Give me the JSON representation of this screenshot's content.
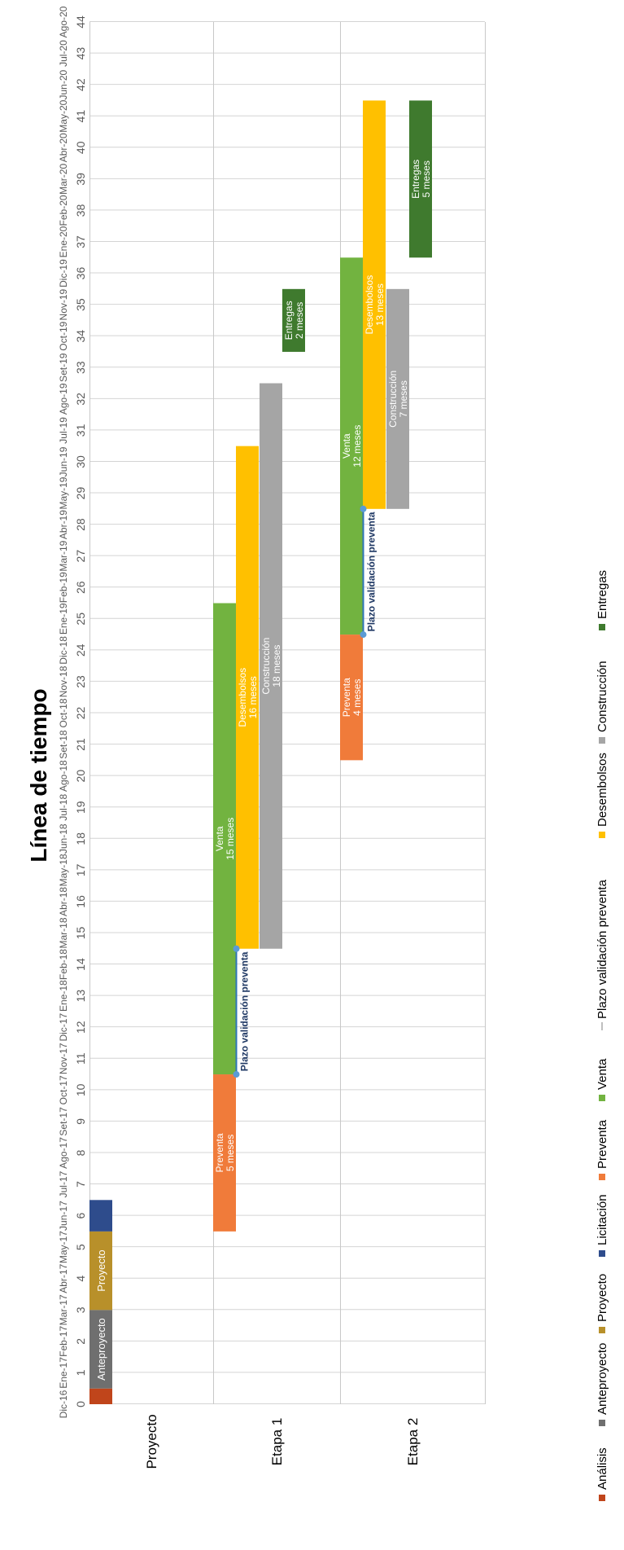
{
  "chart_data": {
    "type": "gantt",
    "title": "Línea de tiempo",
    "orientation": "rotated",
    "x_ticks": [
      {
        "n": "0",
        "d": "Dic-16"
      },
      {
        "n": "1",
        "d": "Ene-17"
      },
      {
        "n": "2",
        "d": "Feb-17"
      },
      {
        "n": "3",
        "d": "Mar-17"
      },
      {
        "n": "4",
        "d": "Abr-17"
      },
      {
        "n": "5",
        "d": "May-17"
      },
      {
        "n": "6",
        "d": "Jun-17"
      },
      {
        "n": "7",
        "d": "Jul-17"
      },
      {
        "n": "8",
        "d": "Ago-17"
      },
      {
        "n": "9",
        "d": "Set-17"
      },
      {
        "n": "10",
        "d": "Oct-17"
      },
      {
        "n": "11",
        "d": "Nov-17"
      },
      {
        "n": "12",
        "d": "Dic-17"
      },
      {
        "n": "13",
        "d": "Ene-18"
      },
      {
        "n": "14",
        "d": "Feb-18"
      },
      {
        "n": "15",
        "d": "Mar-18"
      },
      {
        "n": "16",
        "d": "Abr-18"
      },
      {
        "n": "17",
        "d": "May-18"
      },
      {
        "n": "18",
        "d": "Jun-18"
      },
      {
        "n": "19",
        "d": "Jul-18"
      },
      {
        "n": "20",
        "d": "Ago-18"
      },
      {
        "n": "21",
        "d": "Set-18"
      },
      {
        "n": "22",
        "d": "Oct-18"
      },
      {
        "n": "23",
        "d": "Nov-18"
      },
      {
        "n": "24",
        "d": "Dic-18"
      },
      {
        "n": "25",
        "d": "Ene-19"
      },
      {
        "n": "26",
        "d": "Feb-19"
      },
      {
        "n": "27",
        "d": "Mar-19"
      },
      {
        "n": "28",
        "d": "Abr-19"
      },
      {
        "n": "29",
        "d": "May-19"
      },
      {
        "n": "30",
        "d": "Jun-19"
      },
      {
        "n": "31",
        "d": "Jul-19"
      },
      {
        "n": "32",
        "d": "Ago-19"
      },
      {
        "n": "33",
        "d": "Set-19"
      },
      {
        "n": "34",
        "d": "Oct-19"
      },
      {
        "n": "35",
        "d": "Nov-19"
      },
      {
        "n": "36",
        "d": "Dic-19"
      },
      {
        "n": "37",
        "d": "Ene-20"
      },
      {
        "n": "38",
        "d": "Feb-20"
      },
      {
        "n": "39",
        "d": "Mar-20"
      },
      {
        "n": "40",
        "d": "Abr-20"
      },
      {
        "n": "41",
        "d": "May-20"
      },
      {
        "n": "42",
        "d": "Jun-20"
      },
      {
        "n": "43",
        "d": "Jul-20"
      },
      {
        "n": "44",
        "d": "Ago-20"
      }
    ],
    "xlim": [
      0,
      44
    ],
    "categories": [
      "Proyecto",
      "Etapa 1",
      "Etapa 2"
    ],
    "series": [
      {
        "name": "Análisis",
        "color": "#c0451b"
      },
      {
        "name": "Anteproyecto",
        "color": "#6f6f6f"
      },
      {
        "name": "Proyecto",
        "color": "#b8902a"
      },
      {
        "name": "Licitación",
        "color": "#2e4c8c"
      },
      {
        "name": "Preventa",
        "color": "#f07b3a"
      },
      {
        "name": "Venta",
        "color": "#72b340"
      },
      {
        "name": "Plazo validación preventa",
        "color": "#5b9bd5"
      },
      {
        "name": "Desembolsos",
        "color": "#ffc000"
      },
      {
        "name": "Construcción",
        "color": "#a5a5a5"
      },
      {
        "name": "Entregas",
        "color": "#3f7a2e"
      }
    ],
    "bars": [
      {
        "category": 0,
        "series": "Análisis",
        "start": 0,
        "end": 0.5,
        "lane": 0,
        "label": [
          "",
          ""
        ]
      },
      {
        "category": 0,
        "series": "Anteproyecto",
        "start": 0.5,
        "end": 3,
        "lane": 0,
        "label": [
          "Anteproyecto",
          ""
        ]
      },
      {
        "category": 0,
        "series": "Proyecto",
        "start": 3,
        "end": 5.5,
        "lane": 0,
        "label": [
          "Proyecto",
          ""
        ]
      },
      {
        "category": 0,
        "series": "Licitación",
        "start": 5.5,
        "end": 6.5,
        "lane": 0,
        "label": [
          "",
          ""
        ]
      },
      {
        "category": 1,
        "series": "Preventa",
        "start": 5.5,
        "end": 10.5,
        "lane": 0,
        "label": [
          "Preventa",
          "5 meses"
        ]
      },
      {
        "category": 1,
        "series": "Venta",
        "start": 10.5,
        "end": 25.5,
        "lane": 0,
        "label": [
          "Venta",
          "15 meses"
        ]
      },
      {
        "category": 1,
        "series": "Desembolsos",
        "start": 14.5,
        "end": 30.5,
        "lane": 1,
        "label": [
          "Desembolsos",
          "16 meses"
        ]
      },
      {
        "category": 1,
        "series": "Construcción",
        "start": 14.5,
        "end": 32.5,
        "lane": 2,
        "label": [
          "Construcción",
          "18 meses"
        ]
      },
      {
        "category": 1,
        "series": "Entregas",
        "start": 33.5,
        "end": 35.5,
        "lane": 3,
        "label": [
          "Entregas",
          "2 meses"
        ]
      },
      {
        "category": 2,
        "series": "Preventa",
        "start": 20.5,
        "end": 24.5,
        "lane": 0,
        "label": [
          "Preventa",
          "4 meses"
        ]
      },
      {
        "category": 2,
        "series": "Venta",
        "start": 24.5,
        "end": 36.5,
        "lane": 0,
        "label": [
          "Venta",
          "12 meses"
        ]
      },
      {
        "category": 2,
        "series": "Desembolsos",
        "start": 28.5,
        "end": 41.5,
        "lane": 1,
        "label": [
          "Desembolsos",
          "13 meses"
        ]
      },
      {
        "category": 2,
        "series": "Construcción",
        "start": 28.5,
        "end": 35.5,
        "lane": 2,
        "label": [
          "Construcción",
          "7 meses"
        ]
      },
      {
        "category": 2,
        "series": "Entregas",
        "start": 36.5,
        "end": 41.5,
        "lane": 3,
        "label": [
          "Entregas",
          "5 meses"
        ]
      }
    ],
    "validation_lines": [
      {
        "category": 1,
        "start": 10.5,
        "end": 14.5,
        "label": "Plazo validación preventa"
      },
      {
        "category": 2,
        "start": 24.5,
        "end": 28.5,
        "label": "Plazo validación preventa"
      }
    ],
    "legend_position": "bottom",
    "grid": true
  }
}
